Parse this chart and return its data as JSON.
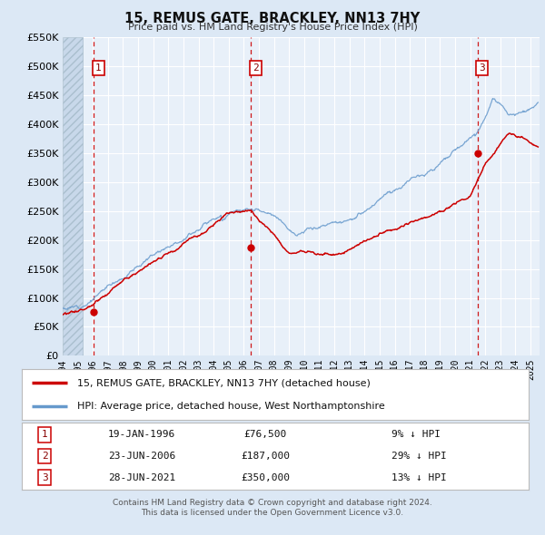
{
  "title": "15, REMUS GATE, BRACKLEY, NN13 7HY",
  "subtitle": "Price paid vs. HM Land Registry's House Price Index (HPI)",
  "ylim": [
    0,
    550000
  ],
  "yticks": [
    0,
    50000,
    100000,
    150000,
    200000,
    250000,
    300000,
    350000,
    400000,
    450000,
    500000,
    550000
  ],
  "xlim_start": 1994.0,
  "xlim_end": 2025.6,
  "bg_color": "#dce8f5",
  "plot_bg_color": "#e8f0f9",
  "hatch_color": "#c8d8ea",
  "red_line_color": "#cc0000",
  "blue_line_color": "#6699cc",
  "grid_color": "#ffffff",
  "sale_dates": [
    1996.05,
    2006.48,
    2021.49
  ],
  "sale_prices": [
    76500,
    187000,
    350000
  ],
  "sale_labels": [
    "1",
    "2",
    "3"
  ],
  "legend_red": "15, REMUS GATE, BRACKLEY, NN13 7HY (detached house)",
  "legend_blue": "HPI: Average price, detached house, West Northamptonshire",
  "table_rows": [
    {
      "num": "1",
      "date": "19-JAN-1996",
      "price": "£76,500",
      "hpi": "9% ↓ HPI"
    },
    {
      "num": "2",
      "date": "23-JUN-2006",
      "price": "£187,000",
      "hpi": "29% ↓ HPI"
    },
    {
      "num": "3",
      "date": "28-JUN-2021",
      "price": "£350,000",
      "hpi": "13% ↓ HPI"
    }
  ],
  "footnote1": "Contains HM Land Registry data © Crown copyright and database right 2024.",
  "footnote2": "This data is licensed under the Open Government Licence v3.0."
}
